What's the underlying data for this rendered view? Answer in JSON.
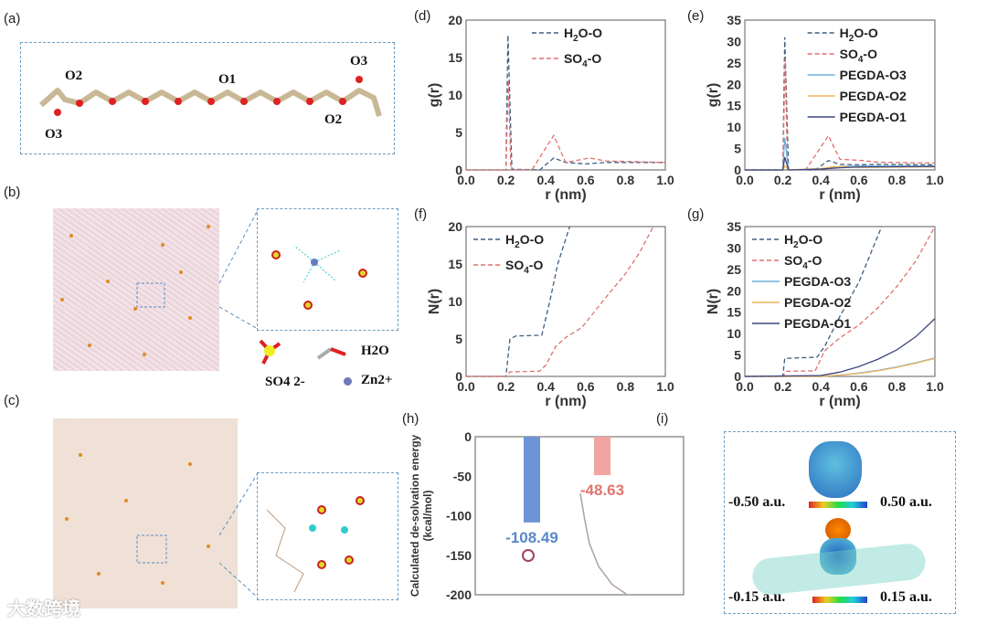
{
  "panel_labels": {
    "a": "(a)",
    "b": "(b)",
    "c": "(c)",
    "d": "(d)",
    "e": "(e)",
    "f": "(f)",
    "g": "(g)",
    "h": "(h)",
    "i": "(i)"
  },
  "panel_a": {
    "labels": [
      "O2",
      "O1",
      "O3",
      "O3",
      "O2"
    ]
  },
  "panel_b": {
    "legend": {
      "h2o": "H2O",
      "so4": "SO4 2-",
      "zn": "Zn2+"
    }
  },
  "panel_i": {
    "scale1_min": "-0.50 a.u.",
    "scale1_max": "0.50 a.u.",
    "scale2_min": "-0.15 a.u.",
    "scale2_max": "0.15 a.u."
  },
  "watermark": "大数跨境",
  "colors": {
    "h2o": "#3d5f80",
    "so4": "#e0706e",
    "o3": "#6fb0da",
    "o2": "#f0b45a",
    "o1": "#3c4680",
    "bar1": "#6c94d6",
    "bar2": "#f2a4a2"
  },
  "chart_data": [
    {
      "id": "d",
      "type": "line",
      "xlabel": "r (nm)",
      "ylabel": "g(r)",
      "xlim": [
        0,
        1
      ],
      "ylim": [
        0,
        20
      ],
      "xticks": [
        "0.0",
        "0.2",
        "0.4",
        "0.6",
        "0.8",
        "1.0"
      ],
      "yticks": [
        "0",
        "5",
        "10",
        "15",
        "20"
      ],
      "legend": "top-right",
      "series": [
        {
          "name": "H2O-O",
          "key": "h2o",
          "dash": true,
          "points": [
            [
              0,
              0
            ],
            [
              0.2,
              0
            ],
            [
              0.21,
              18
            ],
            [
              0.23,
              0.1
            ],
            [
              0.37,
              0
            ],
            [
              0.44,
              1.6
            ],
            [
              0.5,
              1.0
            ],
            [
              0.6,
              0.8
            ],
            [
              0.7,
              1.0
            ],
            [
              1,
              1
            ]
          ]
        },
        {
          "name": "SO4-O",
          "key": "so4",
          "dash": true,
          "points": [
            [
              0,
              0
            ],
            [
              0.2,
              0
            ],
            [
              0.212,
              12
            ],
            [
              0.225,
              0
            ],
            [
              0.33,
              0
            ],
            [
              0.44,
              4.6
            ],
            [
              0.5,
              1.0
            ],
            [
              0.62,
              1.6
            ],
            [
              0.7,
              1.2
            ],
            [
              1,
              1
            ]
          ]
        }
      ]
    },
    {
      "id": "e",
      "type": "line",
      "xlabel": "r (nm)",
      "ylabel": "g(r)",
      "xlim": [
        0,
        1
      ],
      "ylim": [
        0,
        35
      ],
      "xticks": [
        "0.0",
        "0.2",
        "0.4",
        "0.6",
        "0.8",
        "1.0"
      ],
      "yticks": [
        "0",
        "5",
        "10",
        "15",
        "20",
        "25",
        "30",
        "35"
      ],
      "legend": "top-right",
      "series": [
        {
          "name": "H2O-O",
          "key": "h2o",
          "dash": true,
          "points": [
            [
              0,
              0
            ],
            [
              0.2,
              0
            ],
            [
              0.21,
              31
            ],
            [
              0.23,
              0.1
            ],
            [
              0.37,
              0
            ],
            [
              0.44,
              2.2
            ],
            [
              0.5,
              1.3
            ],
            [
              0.6,
              1.2
            ],
            [
              0.7,
              1.3
            ],
            [
              1,
              1.2
            ]
          ]
        },
        {
          "name": "SO4-O",
          "key": "so4",
          "dash": true,
          "points": [
            [
              0,
              0
            ],
            [
              0.2,
              0
            ],
            [
              0.212,
              26
            ],
            [
              0.225,
              0
            ],
            [
              0.32,
              0
            ],
            [
              0.44,
              8
            ],
            [
              0.5,
              2.5
            ],
            [
              0.62,
              2.2
            ],
            [
              0.7,
              1.8
            ],
            [
              1,
              1.6
            ]
          ]
        },
        {
          "name": "PEGDA-O3",
          "key": "o3",
          "dash": false,
          "points": [
            [
              0,
              0
            ],
            [
              0.2,
              0
            ],
            [
              0.21,
              7.5
            ],
            [
              0.23,
              0
            ],
            [
              0.4,
              0.2
            ],
            [
              0.5,
              0.8
            ],
            [
              0.6,
              0.9
            ],
            [
              1,
              0.9
            ]
          ]
        },
        {
          "name": "PEGDA-O2",
          "key": "o2",
          "dash": false,
          "points": [
            [
              0,
              0
            ],
            [
              0.2,
              0
            ],
            [
              0.21,
              1
            ],
            [
              0.23,
              0
            ],
            [
              0.4,
              0.3
            ],
            [
              0.47,
              0.8
            ],
            [
              0.6,
              0.6
            ],
            [
              1,
              0.7
            ]
          ]
        },
        {
          "name": "PEGDA-O1",
          "key": "o1",
          "dash": false,
          "points": [
            [
              0,
              0
            ],
            [
              0.2,
              0
            ],
            [
              0.21,
              3
            ],
            [
              0.23,
              0
            ],
            [
              0.4,
              0.2
            ],
            [
              0.5,
              0.5
            ],
            [
              0.6,
              0.7
            ],
            [
              1,
              0.8
            ]
          ]
        }
      ]
    },
    {
      "id": "f",
      "type": "line",
      "xlabel": "r (nm)",
      "ylabel": "N(r)",
      "xlim": [
        0,
        1
      ],
      "ylim": [
        0,
        20
      ],
      "xticks": [
        "0.0",
        "0.2",
        "0.4",
        "0.6",
        "0.8",
        "1.0"
      ],
      "yticks": [
        "0",
        "5",
        "10",
        "15",
        "20"
      ],
      "legend": "top-left",
      "series": [
        {
          "name": "H2O-O",
          "key": "h2o",
          "dash": true,
          "points": [
            [
              0,
              0
            ],
            [
              0.2,
              0
            ],
            [
              0.22,
              5
            ],
            [
              0.25,
              5.4
            ],
            [
              0.38,
              5.5
            ],
            [
              0.42,
              10
            ],
            [
              0.46,
              15
            ],
            [
              0.52,
              20
            ]
          ]
        },
        {
          "name": "SO4-O",
          "key": "so4",
          "dash": true,
          "points": [
            [
              0,
              0
            ],
            [
              0.2,
              0
            ],
            [
              0.22,
              0.6
            ],
            [
              0.37,
              0.7
            ],
            [
              0.4,
              1.5
            ],
            [
              0.45,
              4
            ],
            [
              0.5,
              5.2
            ],
            [
              0.58,
              6.5
            ],
            [
              0.7,
              10.5
            ],
            [
              0.8,
              13.7
            ],
            [
              0.87,
              16.5
            ],
            [
              0.94,
              20
            ]
          ]
        }
      ]
    },
    {
      "id": "g",
      "type": "line",
      "xlabel": "r (nm)",
      "ylabel": "N(r)",
      "xlim": [
        0,
        1
      ],
      "ylim": [
        0,
        35
      ],
      "xticks": [
        "0.0",
        "0.2",
        "0.4",
        "0.6",
        "0.8",
        "1.0"
      ],
      "yticks": [
        "0",
        "5",
        "10",
        "15",
        "20",
        "25",
        "30",
        "35"
      ],
      "legend": "top-left",
      "series": [
        {
          "name": "H2O-O",
          "key": "h2o",
          "dash": true,
          "points": [
            [
              0,
              0
            ],
            [
              0.2,
              0
            ],
            [
              0.21,
              4.2
            ],
            [
              0.38,
              4.5
            ],
            [
              0.42,
              7
            ],
            [
              0.5,
              14
            ],
            [
              0.6,
              22
            ],
            [
              0.72,
              35
            ]
          ]
        },
        {
          "name": "SO4-O",
          "key": "so4",
          "dash": true,
          "points": [
            [
              0,
              0
            ],
            [
              0.2,
              0
            ],
            [
              0.22,
              1.2
            ],
            [
              0.37,
              1.3
            ],
            [
              0.42,
              6
            ],
            [
              0.5,
              9
            ],
            [
              0.6,
              12
            ],
            [
              0.7,
              16
            ],
            [
              0.8,
              21
            ],
            [
              0.9,
              27
            ],
            [
              1,
              35
            ]
          ]
        },
        {
          "name": "PEGDA-O3",
          "key": "o3",
          "dash": false,
          "points": [
            [
              0,
              0
            ],
            [
              0.4,
              0
            ],
            [
              0.5,
              0.3
            ],
            [
              0.6,
              0.8
            ],
            [
              0.7,
              1.4
            ],
            [
              0.8,
              2.2
            ],
            [
              0.9,
              3.2
            ],
            [
              1,
              4.3
            ]
          ]
        },
        {
          "name": "PEGDA-O2",
          "key": "o2",
          "dash": false,
          "points": [
            [
              0,
              0
            ],
            [
              0.4,
              0
            ],
            [
              0.5,
              0.3
            ],
            [
              0.6,
              0.7
            ],
            [
              0.7,
              1.3
            ],
            [
              0.8,
              2.1
            ],
            [
              0.9,
              3.1
            ],
            [
              1,
              4.2
            ]
          ]
        },
        {
          "name": "PEGDA-O1",
          "key": "o1",
          "dash": false,
          "points": [
            [
              0,
              0
            ],
            [
              0.4,
              0.2
            ],
            [
              0.5,
              1
            ],
            [
              0.6,
              2.3
            ],
            [
              0.7,
              4
            ],
            [
              0.8,
              6.2
            ],
            [
              0.9,
              9.3
            ],
            [
              1,
              13.5
            ]
          ]
        }
      ]
    },
    {
      "id": "h",
      "type": "bar",
      "ylabel": "Calculated de-solvation energy (kcal/mol)",
      "ylim": [
        -200,
        0
      ],
      "yticks": [
        "0",
        "-50",
        "-100",
        "-150",
        "-200"
      ],
      "bars": [
        {
          "key": "bar1",
          "value": -108.49,
          "label": "-108.49"
        },
        {
          "key": "bar2",
          "value": -48.63,
          "label": "-48.63"
        }
      ]
    }
  ]
}
